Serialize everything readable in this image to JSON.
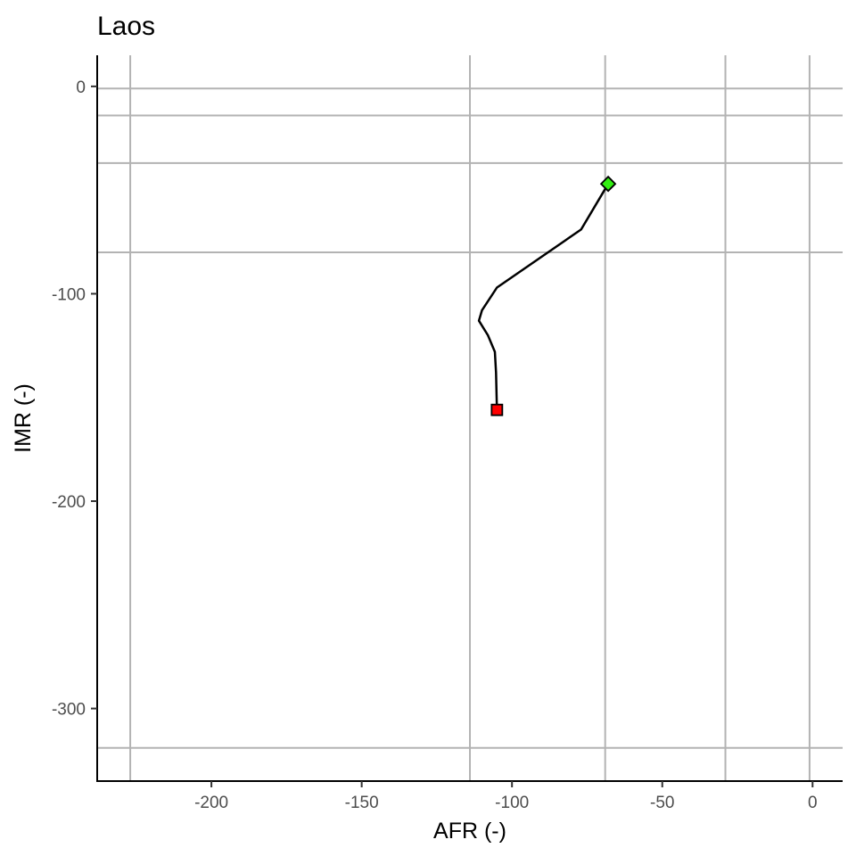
{
  "chart_data": {
    "type": "line",
    "title": "Laos",
    "xlabel": "AFR (-)",
    "ylabel": "IMR (-)",
    "xlim": [
      -238,
      10
    ],
    "ylim": [
      -335,
      15
    ],
    "xticks": [
      -200,
      -150,
      -100,
      -50,
      0
    ],
    "yticks": [
      0,
      -100,
      -200,
      -300
    ],
    "xtick_labels": [
      "-200",
      "-150",
      "-100",
      "-50",
      "0"
    ],
    "ytick_labels": [
      "0",
      "-100",
      "-200",
      "-300"
    ],
    "vlines": [
      -227,
      -114,
      -69,
      -29,
      -1
    ],
    "hlines": [
      -1,
      -14,
      -37,
      -80,
      -319
    ],
    "grid": false,
    "series": [
      {
        "x": [
          -105,
          -105.3,
          -105.7,
          -108,
          -111,
          -110,
          -105,
          -77,
          -68
        ],
        "y": [
          -156,
          -138,
          -128,
          -120,
          -113,
          -108,
          -97,
          -69,
          -47
        ],
        "color": "#000000"
      }
    ],
    "markers": [
      {
        "x": -105,
        "y": -156,
        "shape": "square",
        "fill": "#ff0000"
      },
      {
        "x": -68,
        "y": -47,
        "shape": "diamond",
        "fill": "#33ee11"
      }
    ],
    "grid_color": "#b3b3b3"
  }
}
